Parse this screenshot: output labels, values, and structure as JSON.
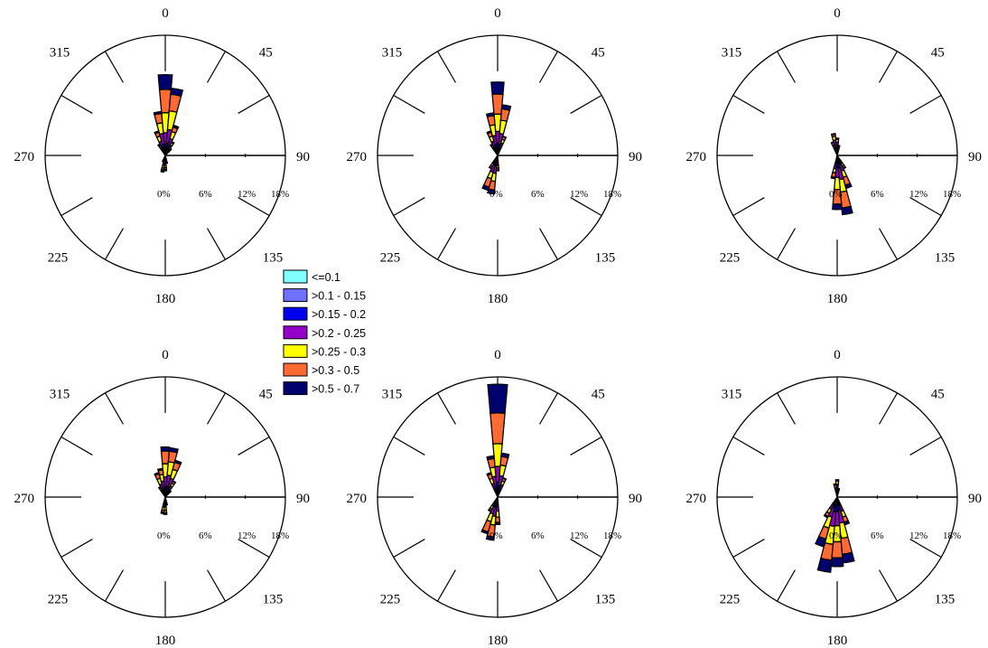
{
  "chart_data": {
    "type": "wind-rose",
    "radial_unit": "%",
    "radial_max": 18,
    "radial_ticks": [
      "0%",
      "6%",
      "12%",
      "18%"
    ],
    "direction_labels": [
      "0",
      "45",
      "90",
      "135",
      "180",
      "225",
      "270",
      "315"
    ],
    "bin_width_deg": 10,
    "legend": {
      "entries": [
        {
          "label": "<=0.1",
          "color": "#80ffff"
        },
        {
          "label": ">0.1 - 0.15",
          "color": "#7070ff"
        },
        {
          "label": ">0.15 - 0.2",
          "color": "#0000ee"
        },
        {
          "label": ">0.2 - 0.25",
          "color": "#9400c8"
        },
        {
          "label": ">0.25 - 0.3",
          "color": "#ffff00"
        },
        {
          "label": ">0.3 - 0.5",
          "color": "#ff6a33"
        },
        {
          "label": ">0.5 - 0.7",
          "color": "#00006e"
        }
      ]
    },
    "panels": [
      {
        "id": "panel-1",
        "petals": [
          {
            "dir": 0,
            "values": [
              0,
              0.4,
              1.2,
              1.8,
              3.0,
              3.5,
              2.2
            ]
          },
          {
            "dir": 10,
            "values": [
              0,
              0.5,
              1.4,
              2.0,
              2.8,
              2.5,
              0.9
            ]
          },
          {
            "dir": 350,
            "values": [
              0,
              0.5,
              1.2,
              1.6,
              1.6,
              1.4,
              0.3
            ]
          },
          {
            "dir": 20,
            "values": [
              0,
              0.5,
              1.1,
              1.0,
              1.1,
              0.7,
              0.3
            ]
          },
          {
            "dir": 340,
            "values": [
              0,
              0.4,
              0.9,
              0.9,
              0.8,
              0.6,
              0.2
            ]
          },
          {
            "dir": 30,
            "values": [
              0,
              0.3,
              0.8,
              0.6,
              0.4,
              0.2,
              0
            ]
          },
          {
            "dir": 330,
            "values": [
              0,
              0.3,
              0.6,
              0.5,
              0.3,
              0.2,
              0
            ]
          },
          {
            "dir": 40,
            "values": [
              0,
              0.3,
              0.5,
              0.3,
              0.2,
              0,
              0
            ]
          },
          {
            "dir": 180,
            "values": [
              0,
              0.3,
              0.6,
              0.5,
              0.4,
              0.3,
              0.2
            ]
          },
          {
            "dir": 190,
            "values": [
              0,
              0.3,
              0.6,
              0.6,
              0.4,
              0.3,
              0.3
            ]
          },
          {
            "dir": 170,
            "values": [
              0,
              0.2,
              0.4,
              0.3,
              0.2,
              0.1,
              0
            ]
          },
          {
            "dir": 200,
            "values": [
              0,
              0.2,
              0.4,
              0.3,
              0.1,
              0,
              0
            ]
          }
        ]
      },
      {
        "id": "panel-2",
        "petals": [
          {
            "dir": 0,
            "values": [
              0,
              0.5,
              1.3,
              1.8,
              2.6,
              3.0,
              1.8
            ]
          },
          {
            "dir": 10,
            "values": [
              0,
              0.5,
              1.2,
              1.6,
              2.0,
              1.7,
              0.6
            ]
          },
          {
            "dir": 350,
            "values": [
              0,
              0.5,
              1.1,
              1.4,
              1.6,
              1.4,
              0.4
            ]
          },
          {
            "dir": 340,
            "values": [
              0,
              0.4,
              0.9,
              0.9,
              0.8,
              0.6,
              0.2
            ]
          },
          {
            "dir": 20,
            "values": [
              0,
              0.4,
              0.8,
              0.7,
              0.6,
              0.4,
              0.1
            ]
          },
          {
            "dir": 330,
            "values": [
              0,
              0.3,
              0.6,
              0.5,
              0.3,
              0.2,
              0
            ]
          },
          {
            "dir": 190,
            "values": [
              0,
              0.5,
              1.0,
              1.2,
              1.2,
              1.3,
              0.6
            ]
          },
          {
            "dir": 200,
            "values": [
              0,
              0.5,
              1.0,
              1.1,
              1.0,
              1.3,
              0.5
            ]
          },
          {
            "dir": 180,
            "values": [
              0,
              0.3,
              0.6,
              0.6,
              0.4,
              0.3,
              0.1
            ]
          },
          {
            "dir": 210,
            "values": [
              0,
              0.3,
              0.6,
              0.5,
              0.4,
              0.3,
              0.1
            ]
          }
        ]
      },
      {
        "id": "panel-3",
        "petals": [
          {
            "dir": 170,
            "values": [
              0,
              0.6,
              1.3,
              1.7,
              1.9,
              2.4,
              1.0
            ]
          },
          {
            "dir": 180,
            "values": [
              0,
              0.6,
              1.2,
              1.5,
              1.8,
              2.2,
              0.8
            ]
          },
          {
            "dir": 160,
            "values": [
              0,
              0.4,
              0.9,
              1.1,
              1.0,
              1.2,
              0.5
            ]
          },
          {
            "dir": 190,
            "values": [
              0,
              0.4,
              0.8,
              0.8,
              0.6,
              0.7,
              0.2
            ]
          },
          {
            "dir": 150,
            "values": [
              0,
              0.3,
              0.6,
              0.5,
              0.4,
              0.3,
              0.1
            ]
          },
          {
            "dir": 350,
            "values": [
              0,
              0.5,
              0.9,
              0.9,
              0.6,
              0.3,
              0.1
            ]
          },
          {
            "dir": 0,
            "values": [
              0,
              0.4,
              0.8,
              0.8,
              0.4,
              0.2,
              0
            ]
          },
          {
            "dir": 340,
            "values": [
              0,
              0.4,
              0.7,
              0.6,
              0.3,
              0.1,
              0
            ]
          },
          {
            "dir": 10,
            "values": [
              0,
              0.3,
              0.6,
              0.4,
              0.2,
              0,
              0
            ]
          }
        ]
      },
      {
        "id": "panel-4",
        "petals": [
          {
            "dir": 0,
            "values": [
              0,
              0.4,
              1.1,
              1.5,
              2.0,
              1.9,
              0.6
            ]
          },
          {
            "dir": 10,
            "values": [
              0,
              0.5,
              1.2,
              1.6,
              2.0,
              1.6,
              0.5
            ]
          },
          {
            "dir": 20,
            "values": [
              0,
              0.5,
              1.1,
              1.3,
              1.4,
              1.1,
              0.3
            ]
          },
          {
            "dir": 350,
            "values": [
              0,
              0.4,
              0.9,
              1.1,
              1.0,
              0.7,
              0.2
            ]
          },
          {
            "dir": 340,
            "values": [
              0,
              0.4,
              0.8,
              0.8,
              0.9,
              0.7,
              0.2
            ]
          },
          {
            "dir": 30,
            "values": [
              0,
              0.4,
              0.8,
              0.6,
              0.5,
              0.3,
              0.1
            ]
          },
          {
            "dir": 330,
            "values": [
              0,
              0.3,
              0.5,
              0.4,
              0.3,
              0.2,
              0
            ]
          },
          {
            "dir": 40,
            "values": [
              0,
              0.2,
              0.4,
              0.3,
              0.2,
              0.1,
              0
            ]
          },
          {
            "dir": 180,
            "values": [
              0,
              0.3,
              0.6,
              0.6,
              0.5,
              0.4,
              0.2
            ]
          },
          {
            "dir": 190,
            "values": [
              0,
              0.3,
              0.6,
              0.6,
              0.5,
              0.3,
              0.2
            ]
          },
          {
            "dir": 170,
            "values": [
              0,
              0.2,
              0.4,
              0.3,
              0.2,
              0.1,
              0
            ]
          }
        ]
      },
      {
        "id": "panel-5",
        "petals": [
          {
            "dir": 0,
            "values": [
              0,
              0.6,
              1.6,
              2.4,
              3.4,
              4.6,
              4.3
            ]
          },
          {
            "dir": 10,
            "values": [
              0,
              0.5,
              1.2,
              1.5,
              1.6,
              1.3,
              0.5
            ]
          },
          {
            "dir": 350,
            "values": [
              0,
              0.5,
              1.2,
              1.4,
              1.4,
              1.3,
              0.4
            ]
          },
          {
            "dir": 340,
            "values": [
              0,
              0.4,
              0.8,
              0.9,
              0.8,
              0.7,
              0.2
            ]
          },
          {
            "dir": 20,
            "values": [
              0,
              0.4,
              0.8,
              0.7,
              0.6,
              0.4,
              0.1
            ]
          },
          {
            "dir": 190,
            "values": [
              0,
              0.5,
              1.1,
              1.3,
              1.3,
              1.8,
              0.5
            ]
          },
          {
            "dir": 200,
            "values": [
              0,
              0.5,
              1.0,
              1.1,
              1.2,
              1.6,
              0.3
            ]
          },
          {
            "dir": 180,
            "values": [
              0,
              0.4,
              0.8,
              0.9,
              0.9,
              0.8,
              0.3
            ]
          },
          {
            "dir": 210,
            "values": [
              0,
              0.3,
              0.6,
              0.6,
              0.5,
              0.3,
              0.1
            ]
          }
        ]
      },
      {
        "id": "panel-6",
        "petals": [
          {
            "dir": 190,
            "values": [
              0,
              0.7,
              1.5,
              2.2,
              2.7,
              2.4,
              1.8
            ]
          },
          {
            "dir": 170,
            "values": [
              0,
              0.6,
              1.4,
              1.9,
              2.3,
              2.4,
              1.3
            ]
          },
          {
            "dir": 180,
            "values": [
              0,
              0.7,
              1.5,
              2.1,
              2.4,
              2.4,
              1.3
            ]
          },
          {
            "dir": 200,
            "values": [
              0,
              0.5,
              1.1,
              1.5,
              1.7,
              1.7,
              1.2
            ]
          },
          {
            "dir": 160,
            "values": [
              0,
              0.4,
              0.8,
              1.0,
              0.9,
              0.8,
              0.4
            ]
          },
          {
            "dir": 210,
            "values": [
              0,
              0.4,
              0.8,
              0.8,
              0.7,
              0.5,
              0.2
            ]
          },
          {
            "dir": 0,
            "values": [
              0,
              0.4,
              0.8,
              0.7,
              0.5,
              0.2,
              0
            ]
          },
          {
            "dir": 350,
            "values": [
              0,
              0.3,
              0.6,
              0.5,
              0.4,
              0.2,
              0
            ]
          },
          {
            "dir": 10,
            "values": [
              0,
              0.3,
              0.5,
              0.3,
              0.2,
              0,
              0
            ]
          }
        ]
      }
    ]
  }
}
